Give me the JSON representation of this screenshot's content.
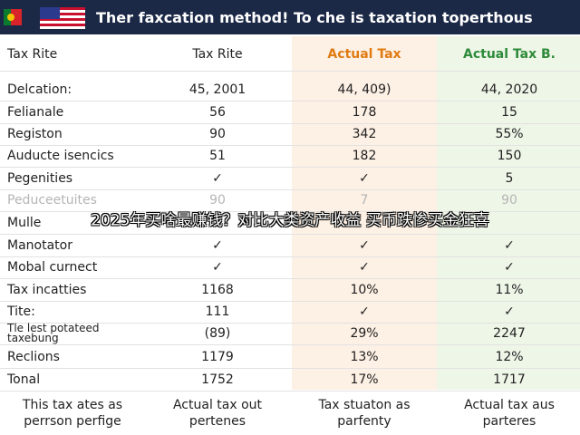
{
  "header": {
    "title": "Ther faxcation method! To che is taxation toperthous"
  },
  "table": {
    "columns": [
      "Tax Rite",
      "Tax Rite",
      "Actual Tax",
      "Actual Tax B."
    ],
    "rows": [
      [
        "Delcation:",
        "45, 2001",
        "44, 409)",
        "44, 2020"
      ],
      [
        "Felianale",
        "56",
        "178",
        "15"
      ],
      [
        "Registon",
        "90",
        "342",
        "55%"
      ],
      [
        "Auducte isencics",
        "51",
        "182",
        "150"
      ],
      [
        "Pegenities",
        "✓",
        "✓",
        "5"
      ],
      [
        "Peduceetuites",
        "90",
        "7",
        "90"
      ],
      [
        "Mulle"
      ],
      [
        "Manotator",
        "✓",
        "✓",
        "✓"
      ],
      [
        "Mobal curnect",
        "✓",
        "✓",
        "✓"
      ],
      [
        "Tax incatties",
        "1168",
        "10%",
        "11%"
      ],
      [
        "Tite:",
        "111",
        "✓",
        "✓"
      ],
      [
        "Tle lest potateed taxebung",
        "(89)",
        "29%",
        "2247"
      ],
      [
        "Reclions",
        "1179",
        "13%",
        "12%"
      ],
      [
        "Tonal",
        "1752",
        "17%",
        "1717"
      ]
    ],
    "footer": [
      [
        "This tax ates as",
        "perrson perfige"
      ],
      [
        "Actual tax out",
        "pertenes"
      ],
      [
        "Tax stuaton as",
        "parfenty"
      ],
      [
        "Actual tax aus",
        "parteres"
      ]
    ]
  },
  "caption": "2025年买啥最赚钱？对比大类资产收益 买币跌惨买金狂喜"
}
